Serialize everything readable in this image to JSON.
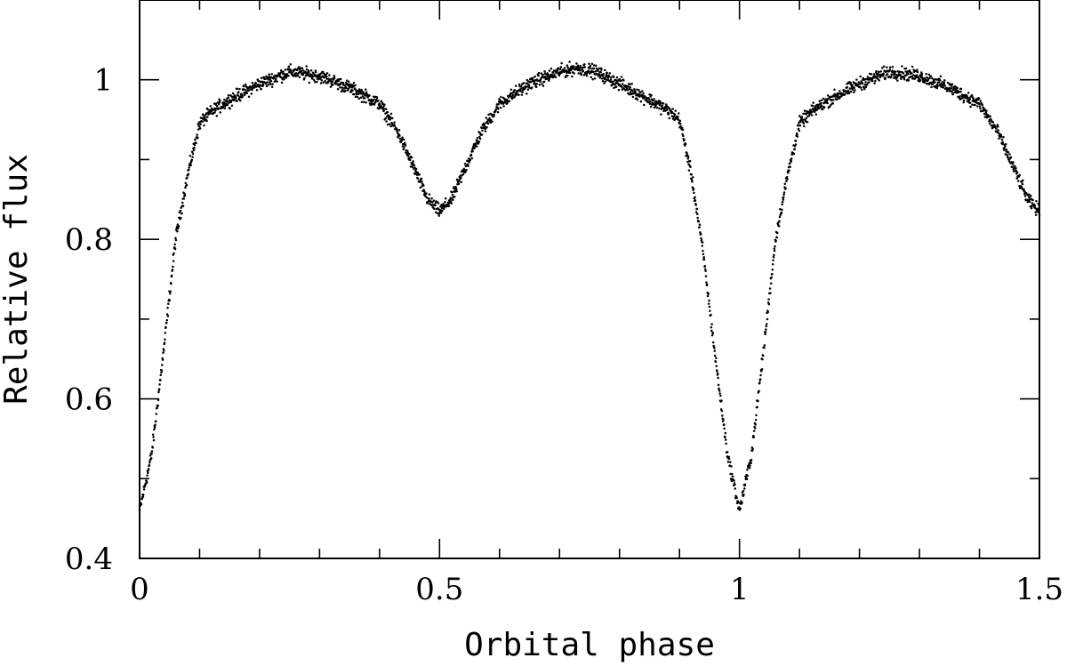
{
  "chart_data": {
    "type": "scatter",
    "title": "",
    "xlabel": "Orbital phase",
    "ylabel": "Relative flux",
    "xlim": [
      0,
      1.5
    ],
    "ylim": [
      0.4,
      1.1
    ],
    "xticks": [
      {
        "value": 0,
        "label": "0"
      },
      {
        "value": 0.5,
        "label": "0.5"
      },
      {
        "value": 1,
        "label": "1"
      },
      {
        "value": 1.5,
        "label": "1.5"
      }
    ],
    "yticks": [
      {
        "value": 0.4,
        "label": "0.4"
      },
      {
        "value": 0.6,
        "label": "0.6"
      },
      {
        "value": 0.8,
        "label": "0.8"
      },
      {
        "value": 1,
        "label": "1"
      }
    ],
    "x_minor_step": 0.1,
    "y_minor_step": 0.1,
    "grid": false,
    "legend": "none",
    "marker_color": "#000000",
    "series": [
      {
        "x": [
          0.0,
          0.02,
          0.04,
          0.06,
          0.08,
          0.1,
          0.12,
          0.15,
          0.2,
          0.25,
          0.3,
          0.35,
          0.4,
          0.43,
          0.46,
          0.48,
          0.5,
          0.52,
          0.54,
          0.57,
          0.6,
          0.65,
          0.7,
          0.73,
          0.76,
          0.8,
          0.85,
          0.88,
          0.9,
          0.92,
          0.94,
          0.96,
          0.98,
          1.0,
          1.02,
          1.04,
          1.06,
          1.08,
          1.1,
          1.12,
          1.15,
          1.2,
          1.25,
          1.3,
          1.35,
          1.4,
          1.43,
          1.46,
          1.48,
          1.5
        ],
        "y": [
          0.46,
          0.53,
          0.66,
          0.8,
          0.88,
          0.945,
          0.96,
          0.975,
          0.995,
          1.01,
          1.005,
          0.99,
          0.97,
          0.935,
          0.885,
          0.85,
          0.835,
          0.85,
          0.885,
          0.935,
          0.97,
          0.995,
          1.01,
          1.015,
          1.01,
          0.995,
          0.975,
          0.962,
          0.95,
          0.88,
          0.78,
          0.65,
          0.53,
          0.46,
          0.53,
          0.66,
          0.8,
          0.88,
          0.945,
          0.96,
          0.975,
          0.995,
          1.01,
          1.005,
          0.99,
          0.97,
          0.935,
          0.885,
          0.85,
          0.835
        ]
      }
    ]
  }
}
